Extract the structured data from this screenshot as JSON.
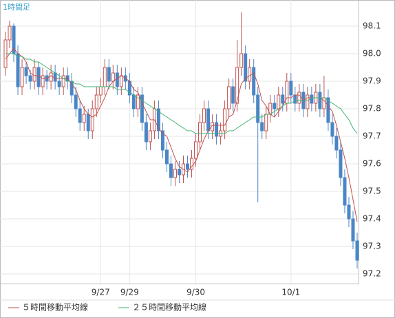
{
  "chart_data": {
    "type": "candlestick",
    "title": "1時間足",
    "categories": [
      null,
      null,
      null,
      null,
      null,
      null,
      null,
      null,
      null,
      null,
      null,
      null,
      null,
      null,
      null,
      null,
      null,
      null,
      null,
      null,
      null,
      null,
      null,
      "9/27",
      null,
      null,
      null,
      null,
      null,
      null,
      "9/29",
      null,
      null,
      null,
      null,
      null,
      null,
      null,
      null,
      null,
      null,
      null,
      null,
      null,
      null,
      null,
      "9/30",
      null,
      null,
      null,
      null,
      null,
      null,
      null,
      null,
      null,
      null,
      null,
      null,
      null,
      null,
      null,
      null,
      null,
      null,
      null,
      null,
      null,
      null,
      "10/1",
      null,
      null,
      null,
      null,
      null,
      null,
      null,
      null,
      null,
      null,
      null,
      null,
      null,
      null,
      null,
      null
    ],
    "open": [
      97.95,
      98.05,
      98.1,
      98.0,
      97.88,
      97.95,
      97.92,
      97.9,
      97.95,
      97.88,
      97.92,
      97.9,
      97.93,
      97.9,
      97.88,
      97.92,
      97.9,
      97.85,
      97.8,
      97.75,
      97.78,
      97.72,
      97.8,
      97.85,
      97.88,
      97.95,
      97.9,
      97.93,
      97.88,
      97.92,
      97.9,
      97.85,
      97.8,
      97.85,
      97.75,
      97.68,
      97.72,
      97.8,
      97.72,
      97.65,
      97.6,
      97.55,
      97.58,
      97.56,
      97.6,
      97.58,
      97.62,
      97.68,
      97.75,
      97.8,
      97.72,
      97.75,
      97.7,
      97.72,
      97.8,
      97.88,
      97.82,
      97.95,
      98.0,
      97.9,
      97.95,
      97.85,
      97.75,
      97.72,
      97.78,
      97.82,
      97.8,
      97.85,
      97.82,
      97.9,
      97.85,
      97.82,
      97.86,
      97.8,
      97.85,
      97.82,
      97.86,
      97.8,
      97.84,
      97.75,
      97.7,
      97.65,
      97.55,
      97.45,
      97.4,
      97.32
    ],
    "high": [
      98.08,
      98.12,
      98.11,
      98.03,
      97.98,
      97.97,
      97.94,
      97.98,
      97.97,
      97.95,
      97.94,
      97.96,
      97.96,
      97.93,
      97.95,
      97.95,
      97.93,
      97.88,
      97.83,
      97.81,
      97.8,
      97.83,
      97.88,
      97.91,
      97.98,
      97.98,
      97.96,
      97.96,
      97.95,
      97.95,
      97.93,
      97.88,
      97.88,
      97.88,
      97.78,
      97.75,
      97.83,
      97.83,
      97.75,
      97.68,
      97.63,
      97.61,
      97.61,
      97.63,
      97.63,
      97.65,
      97.71,
      97.78,
      97.83,
      97.83,
      97.78,
      97.78,
      97.75,
      97.83,
      97.91,
      97.91,
      98.05,
      98.15,
      98.03,
      97.98,
      97.98,
      97.88,
      97.78,
      97.81,
      97.85,
      97.85,
      97.88,
      97.88,
      97.93,
      97.93,
      97.88,
      97.89,
      97.89,
      97.88,
      97.88,
      97.89,
      97.89,
      97.92,
      97.87,
      97.78,
      97.73,
      97.68,
      97.58,
      97.48,
      97.43,
      97.35
    ],
    "low": [
      97.92,
      98.02,
      97.97,
      97.85,
      97.85,
      97.89,
      97.87,
      97.87,
      97.85,
      97.85,
      97.87,
      97.87,
      97.87,
      97.85,
      97.85,
      97.87,
      97.82,
      97.77,
      97.72,
      97.72,
      97.69,
      97.69,
      97.77,
      97.82,
      97.85,
      97.87,
      97.87,
      97.85,
      97.85,
      97.87,
      97.82,
      97.77,
      97.77,
      97.72,
      97.65,
      97.65,
      97.69,
      97.69,
      97.62,
      97.57,
      97.52,
      97.52,
      97.53,
      97.53,
      97.55,
      97.55,
      97.59,
      97.65,
      97.72,
      97.69,
      97.69,
      97.67,
      97.67,
      97.69,
      97.77,
      97.79,
      97.79,
      97.92,
      97.87,
      97.87,
      97.82,
      97.46,
      97.69,
      97.69,
      97.75,
      97.77,
      97.77,
      97.79,
      97.79,
      97.82,
      97.79,
      97.79,
      97.77,
      97.77,
      97.79,
      97.79,
      97.77,
      97.77,
      97.72,
      97.67,
      97.62,
      97.52,
      97.42,
      97.37,
      97.29,
      97.22
    ],
    "close": [
      98.05,
      98.1,
      98.0,
      97.88,
      97.95,
      97.92,
      97.9,
      97.95,
      97.88,
      97.92,
      97.9,
      97.93,
      97.9,
      97.88,
      97.92,
      97.9,
      97.85,
      97.8,
      97.75,
      97.78,
      97.72,
      97.8,
      97.85,
      97.88,
      97.95,
      97.9,
      97.93,
      97.88,
      97.92,
      97.9,
      97.85,
      97.8,
      97.85,
      97.75,
      97.68,
      97.72,
      97.8,
      97.72,
      97.65,
      97.6,
      97.55,
      97.58,
      97.56,
      97.6,
      97.58,
      97.62,
      97.68,
      97.75,
      97.8,
      97.72,
      97.75,
      97.7,
      97.72,
      97.8,
      97.88,
      97.82,
      97.95,
      98.0,
      97.9,
      97.95,
      97.85,
      97.75,
      97.72,
      97.78,
      97.82,
      97.8,
      97.85,
      97.82,
      97.9,
      97.85,
      97.82,
      97.86,
      97.8,
      97.85,
      97.82,
      97.86,
      97.8,
      97.84,
      97.75,
      97.7,
      97.65,
      97.55,
      97.45,
      97.4,
      97.32,
      97.25
    ],
    "up_color": "#c0504d",
    "down_color": "#4a86c5",
    "series": [
      {
        "name": "５時間移動平均線",
        "color": "#c0504d",
        "values": [
          97.98,
          98.0,
          98.02,
          98.0,
          97.99,
          97.97,
          97.93,
          97.92,
          97.92,
          97.91,
          97.91,
          97.92,
          97.91,
          97.91,
          97.91,
          97.91,
          97.89,
          97.87,
          97.83,
          97.8,
          97.78,
          97.77,
          97.78,
          97.81,
          97.84,
          97.88,
          97.9,
          97.91,
          97.92,
          97.91,
          97.9,
          97.87,
          97.86,
          97.82,
          97.79,
          97.76,
          97.76,
          97.73,
          97.71,
          97.7,
          97.66,
          97.62,
          97.59,
          97.58,
          97.57,
          97.59,
          97.61,
          97.65,
          97.69,
          97.72,
          97.74,
          97.74,
          97.74,
          97.74,
          97.77,
          97.78,
          97.83,
          97.89,
          97.91,
          97.92,
          97.93,
          97.89,
          97.83,
          97.81,
          97.78,
          97.77,
          97.79,
          97.81,
          97.84,
          97.84,
          97.85,
          97.85,
          97.83,
          97.84,
          97.84,
          97.84,
          97.84,
          97.83,
          97.81,
          97.79,
          97.74,
          97.68,
          97.62,
          97.55,
          97.47,
          97.39
        ]
      },
      {
        "name": "２５時間移動平均線",
        "color": "#3cb371",
        "values": [
          98.0,
          98.0,
          98.0,
          97.99,
          97.99,
          97.98,
          97.98,
          97.97,
          97.97,
          97.96,
          97.95,
          97.94,
          97.93,
          97.92,
          97.91,
          97.9,
          97.9,
          97.89,
          97.89,
          97.88,
          97.88,
          97.88,
          97.88,
          97.88,
          97.88,
          97.88,
          97.88,
          97.87,
          97.87,
          97.87,
          97.86,
          97.85,
          97.84,
          97.83,
          97.82,
          97.81,
          97.8,
          97.79,
          97.78,
          97.77,
          97.76,
          97.75,
          97.74,
          97.73,
          97.72,
          97.72,
          97.71,
          97.71,
          97.71,
          97.71,
          97.71,
          97.71,
          97.71,
          97.71,
          97.72,
          97.72,
          97.73,
          97.74,
          97.75,
          97.76,
          97.77,
          97.77,
          97.77,
          97.78,
          97.78,
          97.79,
          97.8,
          97.81,
          97.82,
          97.82,
          97.83,
          97.83,
          97.83,
          97.83,
          97.84,
          97.84,
          97.84,
          97.84,
          97.83,
          97.82,
          97.81,
          97.8,
          97.78,
          97.76,
          97.73,
          97.71
        ]
      }
    ],
    "ylim": [
      97.165,
      98.195
    ],
    "yticks": [
      97.2,
      97.3,
      97.4,
      97.5,
      97.6,
      97.7,
      97.8,
      97.9,
      {
        "value": 98,
        "label": "98.0"
      },
      98.1
    ],
    "grid": true
  }
}
